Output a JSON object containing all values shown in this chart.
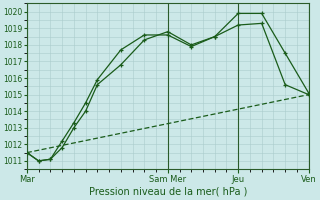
{
  "background_color": "#cce8e8",
  "grid_color": "#aacccc",
  "line_color": "#1a5c1a",
  "marker_color": "#1a5c1a",
  "xlabel": "Pression niveau de la mer( hPa )",
  "ylim": [
    1010.5,
    1020.5
  ],
  "yticks": [
    1011,
    1012,
    1013,
    1014,
    1015,
    1016,
    1017,
    1018,
    1019,
    1020
  ],
  "xtick_labels": [
    "Mar",
    "Sam Mer",
    "Jeu",
    "Ven"
  ],
  "xtick_positions": [
    0,
    6,
    9,
    12
  ],
  "vline_positions": [
    0,
    6,
    9,
    12
  ],
  "num_points": 13,
  "line1_x": [
    0,
    0.5,
    1,
    1.5,
    2,
    2.5,
    3,
    4,
    5,
    6,
    7,
    8,
    9,
    10,
    11,
    12
  ],
  "line1_y": [
    1011.5,
    1011.0,
    1011.1,
    1012.2,
    1013.3,
    1014.5,
    1015.9,
    1017.7,
    1018.6,
    1018.6,
    1017.9,
    1018.5,
    1019.9,
    1019.9,
    1017.5,
    1015.1
  ],
  "line2_x": [
    0,
    0.5,
    1,
    1.5,
    2,
    2.5,
    3,
    4,
    5,
    6,
    7,
    8,
    9,
    10,
    11,
    12
  ],
  "line2_y": [
    1011.5,
    1011.0,
    1011.1,
    1011.8,
    1013.0,
    1014.0,
    1015.6,
    1016.8,
    1018.3,
    1018.8,
    1018.0,
    1018.5,
    1019.2,
    1019.3,
    1015.6,
    1015.0
  ],
  "line3_x": [
    0,
    12
  ],
  "line3_y": [
    1011.5,
    1015.0
  ]
}
